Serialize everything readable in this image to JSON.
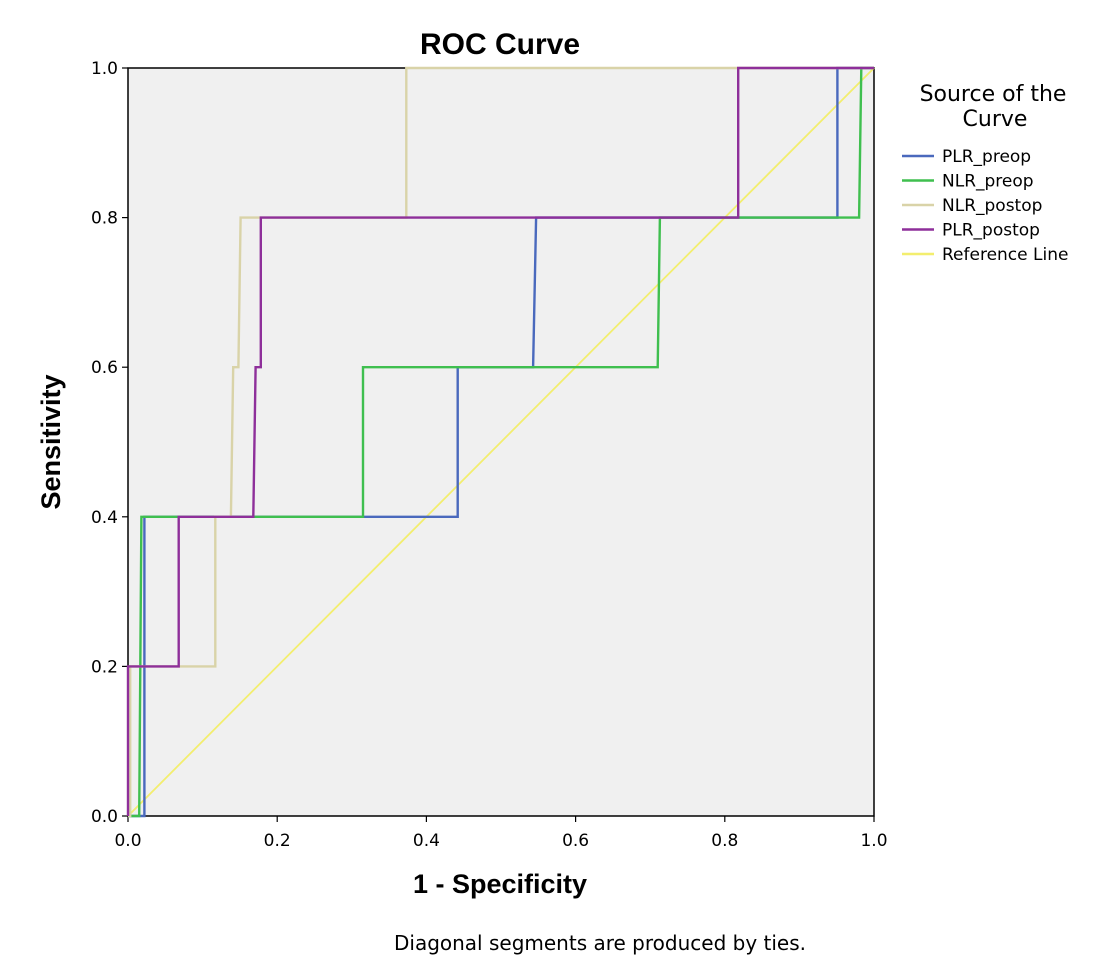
{
  "chart_data": {
    "type": "line",
    "title": "ROC Curve",
    "xlabel": "1 - Specificity",
    "ylabel": "Sensitivity",
    "xlim": [
      0,
      1
    ],
    "ylim": [
      0,
      1
    ],
    "x_ticks": [
      "0.0",
      "0.2",
      "0.4",
      "0.6",
      "0.8",
      "1.0"
    ],
    "y_ticks": [
      "0.0",
      "0.2",
      "0.4",
      "0.6",
      "0.8",
      "1.0"
    ],
    "grid": false,
    "legend": {
      "title_line1": "Source of the",
      "title_line2": "Curve",
      "placement": "right"
    },
    "series": [
      {
        "name": "PLR_preop",
        "color": "#4a69bd",
        "points": [
          [
            0,
            0
          ],
          [
            0.022,
            0
          ],
          [
            0.022,
            0.4
          ],
          [
            0.442,
            0.4
          ],
          [
            0.442,
            0.6
          ],
          [
            0.543,
            0.6
          ],
          [
            0.547,
            0.8
          ],
          [
            0.951,
            0.8
          ],
          [
            0.951,
            1.0
          ],
          [
            1.0,
            1.0
          ]
        ]
      },
      {
        "name": "NLR_preop",
        "color": "#3fbf4f",
        "points": [
          [
            0,
            0
          ],
          [
            0.015,
            0
          ],
          [
            0.018,
            0.4
          ],
          [
            0.315,
            0.4
          ],
          [
            0.315,
            0.6
          ],
          [
            0.71,
            0.6
          ],
          [
            0.713,
            0.8
          ],
          [
            0.98,
            0.8
          ],
          [
            0.983,
            1.0
          ],
          [
            1.0,
            1.0
          ]
        ]
      },
      {
        "name": "NLR_postop",
        "color": "#d9d3a8",
        "points": [
          [
            0,
            0
          ],
          [
            0.003,
            0
          ],
          [
            0.003,
            0.2
          ],
          [
            0.117,
            0.2
          ],
          [
            0.117,
            0.4
          ],
          [
            0.138,
            0.4
          ],
          [
            0.141,
            0.6
          ],
          [
            0.148,
            0.6
          ],
          [
            0.151,
            0.8
          ],
          [
            0.373,
            0.8
          ],
          [
            0.373,
            1.0
          ],
          [
            1.0,
            1.0
          ]
        ]
      },
      {
        "name": "PLR_postop",
        "color": "#8e2f9a",
        "points": [
          [
            0,
            0
          ],
          [
            0,
            0.2
          ],
          [
            0.068,
            0.2
          ],
          [
            0.068,
            0.4
          ],
          [
            0.168,
            0.4
          ],
          [
            0.171,
            0.6
          ],
          [
            0.178,
            0.6
          ],
          [
            0.178,
            0.8
          ],
          [
            0.818,
            0.8
          ],
          [
            0.818,
            1.0
          ],
          [
            1.0,
            1.0
          ]
        ]
      },
      {
        "name": "Reference Line",
        "color": "#f3ee6e",
        "points": [
          [
            0,
            0
          ],
          [
            1,
            1
          ]
        ]
      }
    ],
    "plot_background": "#f0f0f0",
    "footnote": "Diagonal segments are produced by ties."
  }
}
